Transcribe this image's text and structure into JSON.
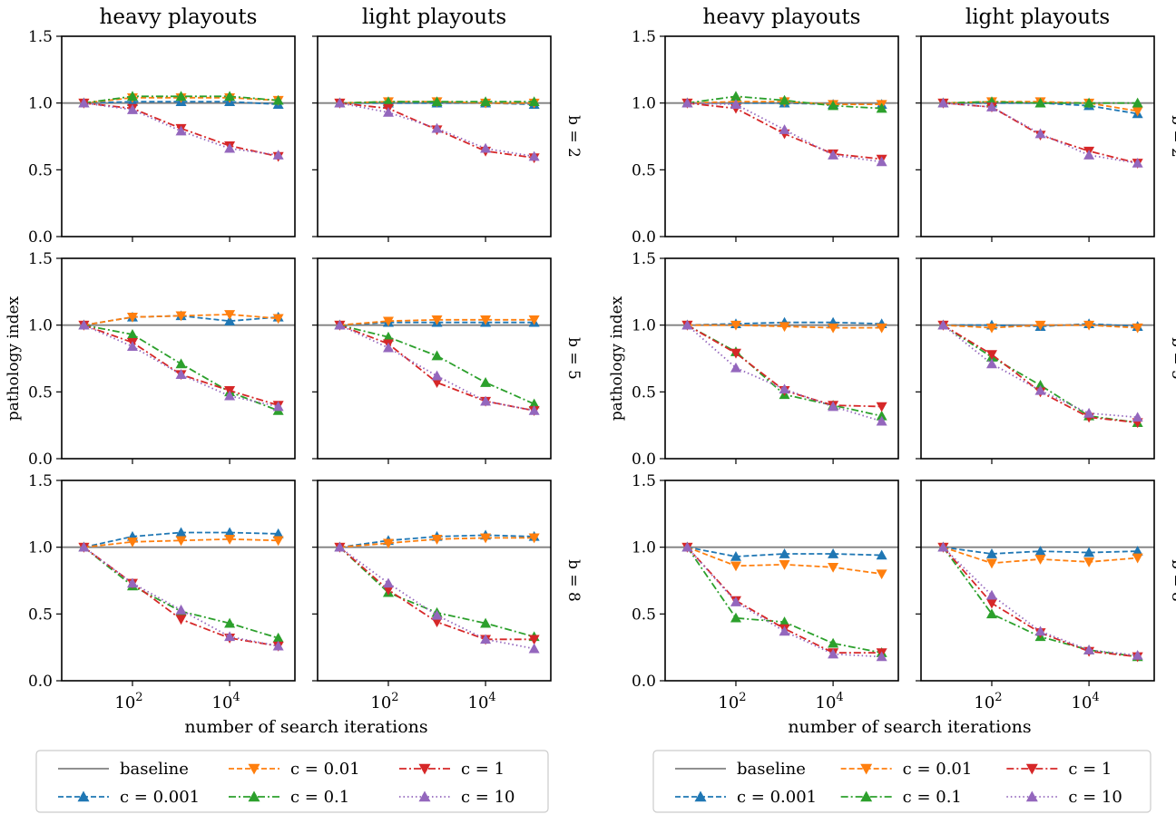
{
  "figure": {
    "col_titles": [
      "heavy playouts",
      "light playouts"
    ],
    "ylabel": "pathology index",
    "xlabel": "number of search iterations",
    "row_labels": [
      "b = 2",
      "b = 5",
      "b = 8"
    ],
    "ytick_labels": [
      "0.0",
      "0.5",
      "1.0",
      "1.5"
    ],
    "xtick_base": "10",
    "xtick_exponents": [
      "2",
      "4"
    ],
    "legend": {
      "entries": [
        {
          "key": "baseline",
          "label": "baseline"
        },
        {
          "key": "c0.001",
          "label": "c = 0.001"
        },
        {
          "key": "c0.01",
          "label": "c = 0.01"
        },
        {
          "key": "c0.1",
          "label": "c = 0.1"
        },
        {
          "key": "c1",
          "label": "c = 1"
        },
        {
          "key": "c10",
          "label": "c = 10"
        }
      ]
    }
  },
  "styles": {
    "baseline": {
      "color": "#808080",
      "dash": "",
      "marker": "none"
    },
    "c0.001": {
      "color": "#1f77b4",
      "dash": "6,3",
      "marker": "up"
    },
    "c0.01": {
      "color": "#ff7f0e",
      "dash": "6,3",
      "marker": "down"
    },
    "c0.1": {
      "color": "#2ca02c",
      "dash": "8,3,2,3",
      "marker": "up"
    },
    "c1": {
      "color": "#d62728",
      "dash": "8,3,2,3",
      "marker": "down"
    },
    "c10": {
      "color": "#9467bd",
      "dash": "1.5,3",
      "marker": "up"
    }
  },
  "chart_data": [
    {
      "type": "line",
      "x": [
        10,
        100,
        1000,
        10000,
        100000
      ],
      "xscale": "log",
      "xlim": [
        3.5,
        220000
      ],
      "ylim": [
        0,
        1.5
      ],
      "panels": [
        {
          "row": "b = 2",
          "col": "heavy playouts",
          "series": [
            {
              "name": "baseline",
              "values": [
                1.0,
                1.0,
                1.0,
                1.0,
                1.0
              ]
            },
            {
              "name": "c = 0.001",
              "values": [
                1.0,
                1.01,
                1.01,
                1.01,
                0.99
              ]
            },
            {
              "name": "c = 0.01",
              "values": [
                1.0,
                1.04,
                1.04,
                1.04,
                1.02
              ]
            },
            {
              "name": "c = 0.1",
              "values": [
                1.0,
                1.05,
                1.05,
                1.05,
                1.02
              ]
            },
            {
              "name": "c = 1",
              "values": [
                1.0,
                0.96,
                0.81,
                0.68,
                0.6
              ]
            },
            {
              "name": "c = 10",
              "values": [
                1.0,
                0.95,
                0.79,
                0.66,
                0.61
              ]
            }
          ]
        },
        {
          "row": "b = 2",
          "col": "light playouts",
          "series": [
            {
              "name": "baseline",
              "values": [
                1.0,
                1.0,
                1.0,
                1.0,
                1.0
              ]
            },
            {
              "name": "c = 0.001",
              "values": [
                1.0,
                1.0,
                1.0,
                1.0,
                0.99
              ]
            },
            {
              "name": "c = 0.01",
              "values": [
                1.0,
                1.01,
                1.01,
                1.0,
                1.0
              ]
            },
            {
              "name": "c = 0.1",
              "values": [
                1.0,
                1.01,
                1.01,
                1.01,
                1.01
              ]
            },
            {
              "name": "c = 1",
              "values": [
                1.0,
                0.96,
                0.8,
                0.64,
                0.59
              ]
            },
            {
              "name": "c = 10",
              "values": [
                1.0,
                0.93,
                0.81,
                0.66,
                0.6
              ]
            }
          ]
        },
        {
          "row": "b = 5",
          "col": "heavy playouts",
          "series": [
            {
              "name": "baseline",
              "values": [
                1.0,
                1.0,
                1.0,
                1.0,
                1.0
              ]
            },
            {
              "name": "c = 0.001",
              "values": [
                1.0,
                1.06,
                1.07,
                1.03,
                1.06
              ]
            },
            {
              "name": "c = 0.01",
              "values": [
                1.0,
                1.06,
                1.07,
                1.08,
                1.05
              ]
            },
            {
              "name": "c = 0.1",
              "values": [
                1.0,
                0.93,
                0.71,
                0.5,
                0.36
              ]
            },
            {
              "name": "c = 1",
              "values": [
                1.0,
                0.87,
                0.63,
                0.51,
                0.4
              ]
            },
            {
              "name": "c = 10",
              "values": [
                1.0,
                0.84,
                0.63,
                0.47,
                0.39
              ]
            }
          ]
        },
        {
          "row": "b = 5",
          "col": "light playouts",
          "series": [
            {
              "name": "baseline",
              "values": [
                1.0,
                1.0,
                1.0,
                1.0,
                1.0
              ]
            },
            {
              "name": "c = 0.001",
              "values": [
                1.0,
                1.02,
                1.02,
                1.02,
                1.02
              ]
            },
            {
              "name": "c = 0.01",
              "values": [
                1.0,
                1.03,
                1.04,
                1.04,
                1.04
              ]
            },
            {
              "name": "c = 0.1",
              "values": [
                1.0,
                0.91,
                0.77,
                0.57,
                0.41
              ]
            },
            {
              "name": "c = 1",
              "values": [
                1.0,
                0.86,
                0.57,
                0.43,
                0.36
              ]
            },
            {
              "name": "c = 10",
              "values": [
                1.0,
                0.83,
                0.62,
                0.43,
                0.36
              ]
            }
          ]
        },
        {
          "row": "b = 8",
          "col": "heavy playouts",
          "series": [
            {
              "name": "baseline",
              "values": [
                1.0,
                1.0,
                1.0,
                1.0,
                1.0
              ]
            },
            {
              "name": "c = 0.001",
              "values": [
                1.0,
                1.08,
                1.11,
                1.11,
                1.1
              ]
            },
            {
              "name": "c = 0.01",
              "values": [
                1.0,
                1.04,
                1.05,
                1.06,
                1.05
              ]
            },
            {
              "name": "c = 0.1",
              "values": [
                1.0,
                0.71,
                0.52,
                0.43,
                0.32
              ]
            },
            {
              "name": "c = 1",
              "values": [
                1.0,
                0.73,
                0.46,
                0.32,
                0.26
              ]
            },
            {
              "name": "c = 10",
              "values": [
                1.0,
                0.73,
                0.53,
                0.33,
                0.26
              ]
            }
          ]
        },
        {
          "row": "b = 8",
          "col": "light playouts",
          "series": [
            {
              "name": "baseline",
              "values": [
                1.0,
                1.0,
                1.0,
                1.0,
                1.0
              ]
            },
            {
              "name": "c = 0.001",
              "values": [
                1.0,
                1.05,
                1.08,
                1.09,
                1.08
              ]
            },
            {
              "name": "c = 0.01",
              "values": [
                1.0,
                1.03,
                1.06,
                1.07,
                1.07
              ]
            },
            {
              "name": "c = 0.1",
              "values": [
                1.0,
                0.66,
                0.51,
                0.43,
                0.33
              ]
            },
            {
              "name": "c = 1",
              "values": [
                1.0,
                0.68,
                0.44,
                0.31,
                0.31
              ]
            },
            {
              "name": "c = 10",
              "values": [
                1.0,
                0.73,
                0.49,
                0.31,
                0.24
              ]
            }
          ]
        }
      ]
    },
    {
      "type": "line",
      "x": [
        10,
        100,
        1000,
        10000,
        100000
      ],
      "xscale": "log",
      "xlim": [
        3.5,
        220000
      ],
      "ylim": [
        0,
        1.5
      ],
      "panels": [
        {
          "row": "b = 2",
          "col": "heavy playouts",
          "series": [
            {
              "name": "baseline",
              "values": [
                1.0,
                1.0,
                1.0,
                1.0,
                1.0
              ]
            },
            {
              "name": "c = 0.001",
              "values": [
                1.0,
                1.0,
                1.0,
                0.99,
                0.99
              ]
            },
            {
              "name": "c = 0.01",
              "values": [
                1.0,
                1.01,
                1.01,
                0.99,
                0.99
              ]
            },
            {
              "name": "c = 0.1",
              "values": [
                1.0,
                1.05,
                1.02,
                0.98,
                0.96
              ]
            },
            {
              "name": "c = 1",
              "values": [
                1.0,
                0.96,
                0.77,
                0.62,
                0.58
              ]
            },
            {
              "name": "c = 10",
              "values": [
                1.0,
                0.99,
                0.8,
                0.61,
                0.56
              ]
            }
          ]
        },
        {
          "row": "b = 2",
          "col": "light playouts",
          "series": [
            {
              "name": "baseline",
              "values": [
                1.0,
                1.0,
                1.0,
                1.0,
                1.0
              ]
            },
            {
              "name": "c = 0.001",
              "values": [
                1.0,
                1.0,
                1.0,
                0.98,
                0.92
              ]
            },
            {
              "name": "c = 0.01",
              "values": [
                1.0,
                1.01,
                1.01,
                1.0,
                0.94
              ]
            },
            {
              "name": "c = 0.1",
              "values": [
                1.0,
                1.01,
                1.0,
                1.0,
                1.0
              ]
            },
            {
              "name": "c = 1",
              "values": [
                1.0,
                0.97,
                0.76,
                0.64,
                0.55
              ]
            },
            {
              "name": "c = 10",
              "values": [
                1.0,
                0.97,
                0.77,
                0.61,
                0.55
              ]
            }
          ]
        },
        {
          "row": "b = 5",
          "col": "heavy playouts",
          "series": [
            {
              "name": "baseline",
              "values": [
                1.0,
                1.0,
                1.0,
                1.0,
                1.0
              ]
            },
            {
              "name": "c = 0.001",
              "values": [
                1.0,
                1.01,
                1.02,
                1.02,
                1.01
              ]
            },
            {
              "name": "c = 0.01",
              "values": [
                1.0,
                1.0,
                0.99,
                0.98,
                0.98
              ]
            },
            {
              "name": "c = 0.1",
              "values": [
                1.0,
                0.8,
                0.48,
                0.4,
                0.32
              ]
            },
            {
              "name": "c = 1",
              "values": [
                1.0,
                0.79,
                0.51,
                0.4,
                0.39
              ]
            },
            {
              "name": "c = 10",
              "values": [
                1.0,
                0.68,
                0.52,
                0.39,
                0.28
              ]
            }
          ]
        },
        {
          "row": "b = 5",
          "col": "light playouts",
          "series": [
            {
              "name": "baseline",
              "values": [
                1.0,
                1.0,
                1.0,
                1.0,
                1.0
              ]
            },
            {
              "name": "c = 0.001",
              "values": [
                1.0,
                1.0,
                0.99,
                1.01,
                0.99
              ]
            },
            {
              "name": "c = 0.01",
              "values": [
                1.0,
                0.98,
                1.0,
                1.0,
                0.98
              ]
            },
            {
              "name": "c = 0.1",
              "values": [
                1.0,
                0.76,
                0.55,
                0.32,
                0.27
              ]
            },
            {
              "name": "c = 1",
              "values": [
                1.0,
                0.78,
                0.5,
                0.31,
                0.27
              ]
            },
            {
              "name": "c = 10",
              "values": [
                1.0,
                0.71,
                0.51,
                0.34,
                0.31
              ]
            }
          ]
        },
        {
          "row": "b = 8",
          "col": "heavy playouts",
          "series": [
            {
              "name": "baseline",
              "values": [
                1.0,
                1.0,
                1.0,
                1.0,
                1.0
              ]
            },
            {
              "name": "c = 0.001",
              "values": [
                1.0,
                0.93,
                0.95,
                0.95,
                0.94
              ]
            },
            {
              "name": "c = 0.01",
              "values": [
                1.0,
                0.86,
                0.87,
                0.85,
                0.8
              ]
            },
            {
              "name": "c = 0.1",
              "values": [
                1.0,
                0.47,
                0.44,
                0.28,
                0.21
              ]
            },
            {
              "name": "c = 1",
              "values": [
                1.0,
                0.6,
                0.39,
                0.21,
                0.21
              ]
            },
            {
              "name": "c = 10",
              "values": [
                1.0,
                0.59,
                0.37,
                0.2,
                0.18
              ]
            }
          ]
        },
        {
          "row": "b = 8",
          "col": "light playouts",
          "series": [
            {
              "name": "baseline",
              "values": [
                1.0,
                1.0,
                1.0,
                1.0,
                1.0
              ]
            },
            {
              "name": "c = 0.001",
              "values": [
                1.0,
                0.95,
                0.97,
                0.96,
                0.97
              ]
            },
            {
              "name": "c = 0.01",
              "values": [
                1.0,
                0.88,
                0.91,
                0.89,
                0.92
              ]
            },
            {
              "name": "c = 0.1",
              "values": [
                1.0,
                0.5,
                0.33,
                0.23,
                0.18
              ]
            },
            {
              "name": "c = 1",
              "values": [
                1.0,
                0.58,
                0.36,
                0.22,
                0.18
              ]
            },
            {
              "name": "c = 10",
              "values": [
                1.0,
                0.64,
                0.37,
                0.23,
                0.19
              ]
            }
          ]
        }
      ]
    }
  ]
}
